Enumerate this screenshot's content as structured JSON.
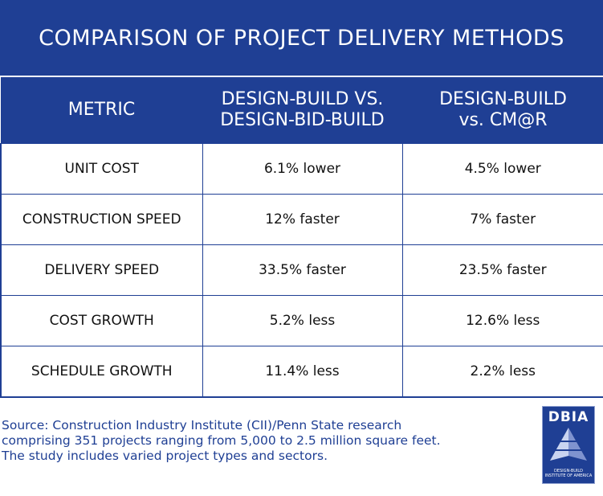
{
  "title": "COMPARISON OF PROJECT DELIVERY METHODS",
  "table": {
    "headers": [
      "METRIC",
      "DESIGN-BUILD VS. DESIGN-BID-BUILD",
      "DESIGN-BUILD vs. CM@R"
    ],
    "header_lines": [
      [
        "METRIC"
      ],
      [
        "DESIGN-BUILD VS.",
        "DESIGN-BID-BUILD"
      ],
      [
        "DESIGN-BUILD",
        "vs. CM@R"
      ]
    ],
    "rows": [
      [
        "UNIT COST",
        "6.1% lower",
        "4.5% lower"
      ],
      [
        "CONSTRUCTION SPEED",
        "12% faster",
        "7% faster"
      ],
      [
        "DELIVERY SPEED",
        "33.5% faster",
        "23.5% faster"
      ],
      [
        "COST GROWTH",
        "5.2% less",
        "12.6% less"
      ],
      [
        "SCHEDULE GROWTH",
        "11.4% less",
        "2.2% less"
      ]
    ]
  },
  "source": {
    "lines": [
      "Source: Construction Industry Institute (CII)/Penn State research",
      "comprising 351 projects ranging from 5,000 to 2.5 million square feet.",
      "The study includes varied project types and sectors."
    ]
  },
  "logo": {
    "name": "DBIA",
    "line1": "DESIGN-BUILD",
    "line2": "INSTITUTE OF AMERICA"
  },
  "colors": {
    "brand_blue": "#1f3f94",
    "text": "#111111"
  }
}
